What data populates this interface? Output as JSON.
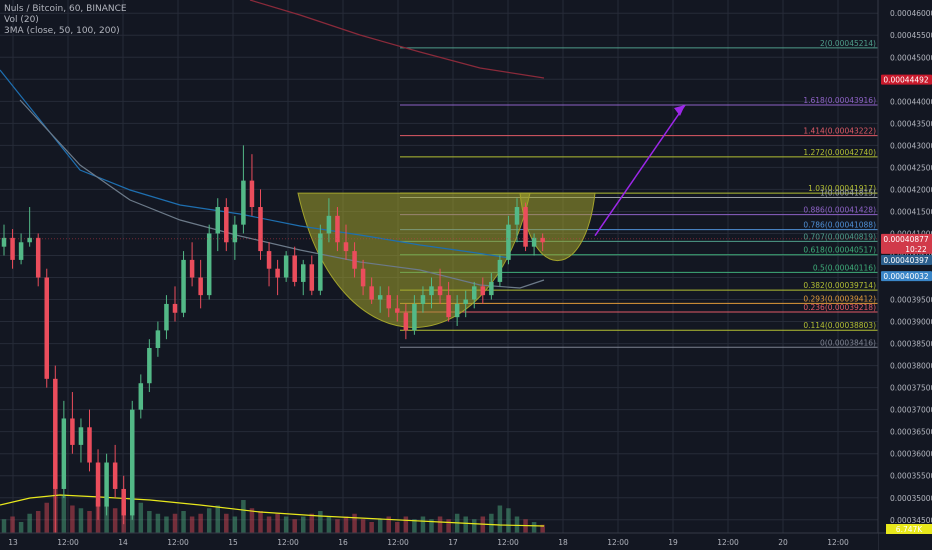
{
  "header": {
    "line1": "Nuls / Bitcoin, 60, BINANCE",
    "line2": "Vol (20)",
    "line3": "3MA (close, 50, 100, 200)"
  },
  "colors": {
    "background": "#131722",
    "grid": "#262b38",
    "up": "#53b987",
    "down": "#eb4d5c",
    "ma50": "#1e6fb0",
    "ma100": "#6c7a89",
    "ma200": "#8a2a3a",
    "vol_ma": "#e8e81c",
    "cup": "#a3a32c",
    "arrow": "#9c27e8"
  },
  "badges": {
    "b1": "0.00044492",
    "b2": "0.00040877",
    "b2_time": "10:22",
    "b3": "0.00040397",
    "b4": "0.00040032",
    "b5": "6.747K"
  },
  "chart_data": {
    "type": "candlestick",
    "title": "Nuls / Bitcoin, 60, BINANCE",
    "y_axis": {
      "min": 0.000342,
      "max": 0.000463,
      "ticks": [
        "0.00034500",
        "0.00035000",
        "0.00035500",
        "0.00036000",
        "0.00036500",
        "0.00037000",
        "0.00037500",
        "0.00038000",
        "0.00038500",
        "0.00039000",
        "0.00039500",
        "0.00040000",
        "0.00040500",
        "0.00041000",
        "0.00041500",
        "0.00042000",
        "0.00042500",
        "0.00043000",
        "0.00043500",
        "0.00044000",
        "0.00044500",
        "0.00045000",
        "0.00045500",
        "0.00046000"
      ]
    },
    "x_axis": {
      "ticks": [
        "13",
        "12:00",
        "14",
        "12:00",
        "15",
        "12:00",
        "16",
        "12:00",
        "17",
        "12:00",
        "18",
        "12:00",
        "19",
        "12:00",
        "20",
        "12:00"
      ],
      "grid": true
    },
    "fib_levels": [
      {
        "ratio": 2,
        "label": "2(0.00045214)",
        "value": 0.00045214,
        "color": "#4f9d8a"
      },
      {
        "ratio": 1.618,
        "label": "1.618(0.00043916)",
        "value": 0.00043916,
        "color": "#8e62c7"
      },
      {
        "ratio": 1.414,
        "label": "1.414(0.00043222)",
        "value": 0.00043222,
        "color": "#e05a66"
      },
      {
        "ratio": 1.272,
        "label": "1.272(0.00042740)",
        "value": 0.0004274,
        "color": "#b3bf33"
      },
      {
        "ratio": 1.03,
        "label": "1.03(0.00041917)",
        "value": 0.00041917,
        "color": "#b3bf33"
      },
      {
        "ratio": 1,
        "label": "1(0.00041815)",
        "value": 0.00041815,
        "color": "#9aa0a6"
      },
      {
        "ratio": 0.886,
        "label": "0.886(0.00041428)",
        "value": 0.00041428,
        "color": "#8e62c7"
      },
      {
        "ratio": 0.786,
        "label": "0.786(0.00041088)",
        "value": 0.00041088,
        "color": "#4f8fd6"
      },
      {
        "ratio": 0.707,
        "label": "0.707(0.00040819)",
        "value": 0.00040819,
        "color": "#4f9d8a"
      },
      {
        "ratio": 0.618,
        "label": "0.618(0.00040517)",
        "value": 0.00040517,
        "color": "#3fae7a"
      },
      {
        "ratio": 0.5,
        "label": "0.5(0.00040116)",
        "value": 0.00040116,
        "color": "#3fae7a"
      },
      {
        "ratio": 0.382,
        "label": "0.382(0.00039714)",
        "value": 0.00039714,
        "color": "#b3bf33"
      },
      {
        "ratio": 0.293,
        "label": "0.293(0.00039412)",
        "value": 0.00039412,
        "color": "#e09a3a"
      },
      {
        "ratio": 0.236,
        "label": "0.236(0.00039218)",
        "value": 0.00039218,
        "color": "#e05a66"
      },
      {
        "ratio": 0.114,
        "label": "0.114(0.00038803)",
        "value": 0.00038803,
        "color": "#b3bf33"
      },
      {
        "ratio": 0,
        "label": "0(0.00038416)",
        "value": 0.00038416,
        "color": "#7d8290"
      }
    ],
    "candles_approx": [
      {
        "o": 0.000407,
        "h": 0.000412,
        "l": 0.000405,
        "c": 0.000409
      },
      {
        "o": 0.000409,
        "h": 0.000411,
        "l": 0.000402,
        "c": 0.000404
      },
      {
        "o": 0.000404,
        "h": 0.00041,
        "l": 0.000403,
        "c": 0.000408
      },
      {
        "o": 0.000408,
        "h": 0.000416,
        "l": 0.000407,
        "c": 0.000409
      },
      {
        "o": 0.000409,
        "h": 0.00041,
        "l": 0.000398,
        "c": 0.0004
      },
      {
        "o": 0.0004,
        "h": 0.000402,
        "l": 0.000375,
        "c": 0.000377
      },
      {
        "o": 0.000377,
        "h": 0.00038,
        "l": 0.000342,
        "c": 0.000352
      },
      {
        "o": 0.000352,
        "h": 0.000372,
        "l": 0.00035,
        "c": 0.000368
      },
      {
        "o": 0.000368,
        "h": 0.000374,
        "l": 0.00036,
        "c": 0.000362
      },
      {
        "o": 0.000362,
        "h": 0.000368,
        "l": 0.000358,
        "c": 0.000366
      },
      {
        "o": 0.000366,
        "h": 0.00037,
        "l": 0.000356,
        "c": 0.000358
      },
      {
        "o": 0.000358,
        "h": 0.000361,
        "l": 0.000345,
        "c": 0.000348
      },
      {
        "o": 0.000348,
        "h": 0.00036,
        "l": 0.000346,
        "c": 0.000358
      },
      {
        "o": 0.000358,
        "h": 0.000362,
        "l": 0.00035,
        "c": 0.000352
      },
      {
        "o": 0.000352,
        "h": 0.000355,
        "l": 0.000344,
        "c": 0.000346
      },
      {
        "o": 0.000346,
        "h": 0.000372,
        "l": 0.000345,
        "c": 0.00037
      },
      {
        "o": 0.00037,
        "h": 0.000378,
        "l": 0.000368,
        "c": 0.000376
      },
      {
        "o": 0.000376,
        "h": 0.000386,
        "l": 0.000374,
        "c": 0.000384
      },
      {
        "o": 0.000384,
        "h": 0.00039,
        "l": 0.000382,
        "c": 0.000388
      },
      {
        "o": 0.000388,
        "h": 0.000396,
        "l": 0.000386,
        "c": 0.000394
      },
      {
        "o": 0.000394,
        "h": 0.000398,
        "l": 0.00039,
        "c": 0.000392
      },
      {
        "o": 0.000392,
        "h": 0.000406,
        "l": 0.000391,
        "c": 0.000404
      },
      {
        "o": 0.000404,
        "h": 0.000408,
        "l": 0.000398,
        "c": 0.0004
      },
      {
        "o": 0.0004,
        "h": 0.000404,
        "l": 0.000393,
        "c": 0.000396
      },
      {
        "o": 0.000396,
        "h": 0.000412,
        "l": 0.000395,
        "c": 0.00041
      },
      {
        "o": 0.00041,
        "h": 0.000418,
        "l": 0.000406,
        "c": 0.000416
      },
      {
        "o": 0.000416,
        "h": 0.000418,
        "l": 0.000406,
        "c": 0.000408
      },
      {
        "o": 0.000408,
        "h": 0.000414,
        "l": 0.000404,
        "c": 0.000412
      },
      {
        "o": 0.000412,
        "h": 0.00043,
        "l": 0.00041,
        "c": 0.000422
      },
      {
        "o": 0.000422,
        "h": 0.000428,
        "l": 0.000414,
        "c": 0.000416
      },
      {
        "o": 0.000416,
        "h": 0.00042,
        "l": 0.000404,
        "c": 0.000406
      },
      {
        "o": 0.000406,
        "h": 0.000408,
        "l": 0.000398,
        "c": 0.000402
      },
      {
        "o": 0.000402,
        "h": 0.000404,
        "l": 0.000396,
        "c": 0.0004
      },
      {
        "o": 0.0004,
        "h": 0.000406,
        "l": 0.000399,
        "c": 0.000405
      },
      {
        "o": 0.000405,
        "h": 0.000407,
        "l": 0.000398,
        "c": 0.000399
      },
      {
        "o": 0.000399,
        "h": 0.000404,
        "l": 0.000396,
        "c": 0.000403
      },
      {
        "o": 0.000403,
        "h": 0.000405,
        "l": 0.000396,
        "c": 0.000397
      },
      {
        "o": 0.000397,
        "h": 0.000412,
        "l": 0.000396,
        "c": 0.00041
      },
      {
        "o": 0.00041,
        "h": 0.000418,
        "l": 0.000408,
        "c": 0.000414
      },
      {
        "o": 0.000414,
        "h": 0.000416,
        "l": 0.000406,
        "c": 0.000408
      },
      {
        "o": 0.000408,
        "h": 0.000412,
        "l": 0.000404,
        "c": 0.000406
      },
      {
        "o": 0.000406,
        "h": 0.000408,
        "l": 0.0004,
        "c": 0.000402
      },
      {
        "o": 0.000402,
        "h": 0.000404,
        "l": 0.000396,
        "c": 0.000398
      },
      {
        "o": 0.000398,
        "h": 0.0004,
        "l": 0.000394,
        "c": 0.000395
      },
      {
        "o": 0.000395,
        "h": 0.000398,
        "l": 0.000392,
        "c": 0.000396
      },
      {
        "o": 0.000396,
        "h": 0.000398,
        "l": 0.000391,
        "c": 0.000393
      },
      {
        "o": 0.000393,
        "h": 0.000396,
        "l": 0.00039,
        "c": 0.000392
      },
      {
        "o": 0.000392,
        "h": 0.000394,
        "l": 0.000386,
        "c": 0.000388
      },
      {
        "o": 0.000388,
        "h": 0.000396,
        "l": 0.000387,
        "c": 0.000394
      },
      {
        "o": 0.000394,
        "h": 0.000398,
        "l": 0.000392,
        "c": 0.000396
      },
      {
        "o": 0.000396,
        "h": 0.0004,
        "l": 0.000393,
        "c": 0.000398
      },
      {
        "o": 0.000398,
        "h": 0.000402,
        "l": 0.000394,
        "c": 0.000396
      },
      {
        "o": 0.000396,
        "h": 0.000399,
        "l": 0.00039,
        "c": 0.000391
      },
      {
        "o": 0.000391,
        "h": 0.000396,
        "l": 0.000389,
        "c": 0.000394
      },
      {
        "o": 0.000394,
        "h": 0.000397,
        "l": 0.000391,
        "c": 0.000395
      },
      {
        "o": 0.000395,
        "h": 0.000399,
        "l": 0.000393,
        "c": 0.000398
      },
      {
        "o": 0.000398,
        "h": 0.0004,
        "l": 0.000394,
        "c": 0.000396
      },
      {
        "o": 0.000396,
        "h": 0.000401,
        "l": 0.000395,
        "c": 0.000399
      },
      {
        "o": 0.000399,
        "h": 0.000405,
        "l": 0.000398,
        "c": 0.000404
      },
      {
        "o": 0.000404,
        "h": 0.000414,
        "l": 0.000403,
        "c": 0.000412
      },
      {
        "o": 0.000412,
        "h": 0.000418,
        "l": 0.000408,
        "c": 0.000416
      },
      {
        "o": 0.000416,
        "h": 0.000417,
        "l": 0.000406,
        "c": 0.000407
      },
      {
        "o": 0.000407,
        "h": 0.00041,
        "l": 0.000405,
        "c": 0.000409
      },
      {
        "o": 0.000409,
        "h": 0.00041,
        "l": 0.000406,
        "c": 0.000408
      }
    ],
    "volume_max_visible": 0.00036,
    "annotations": [
      "cup and handle pattern",
      "projected target arrow to 1.618 level"
    ]
  }
}
